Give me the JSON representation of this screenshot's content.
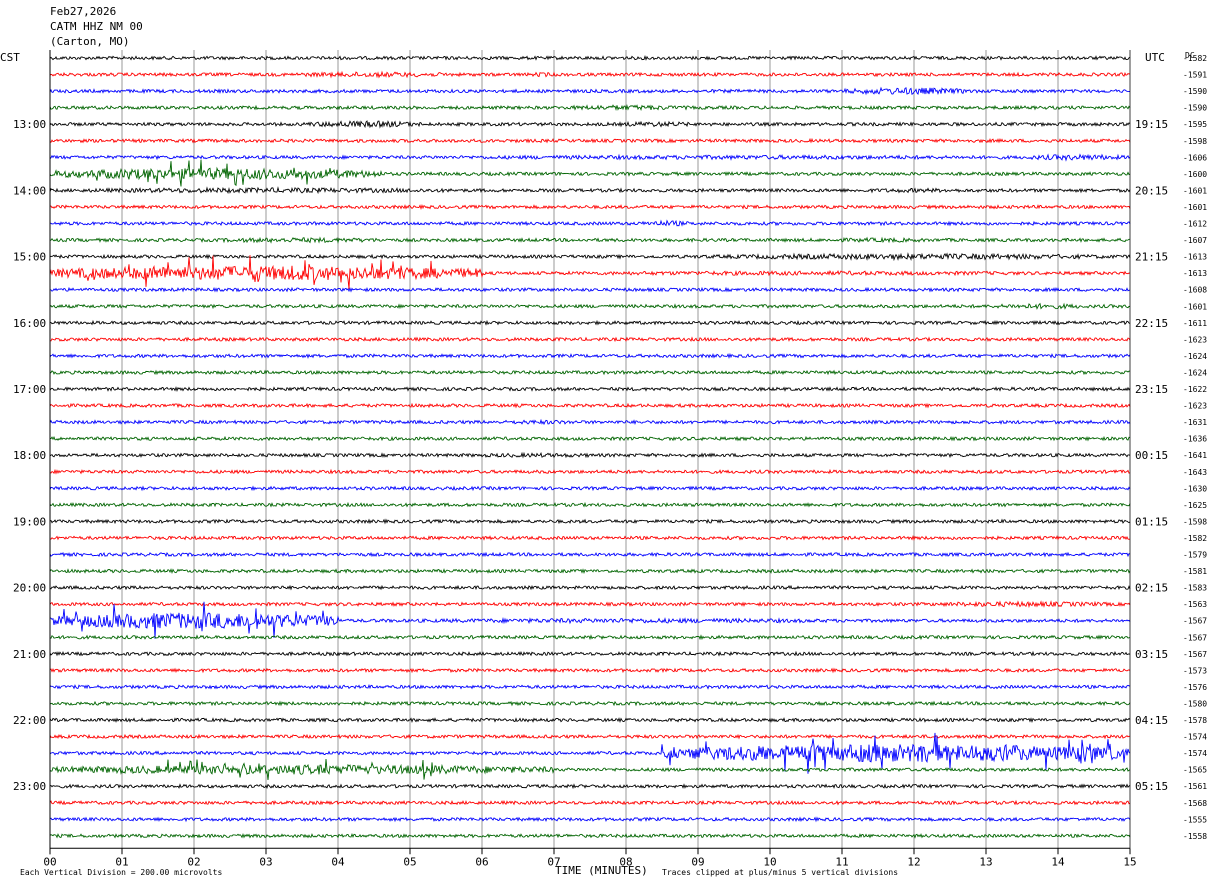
{
  "header": {
    "date": "Feb27,2026",
    "station": "CATM HHZ NM 00",
    "location": "(Carton, MO)"
  },
  "chart_data": {
    "type": "line",
    "title": "Feb27,2026  CATM HHZ NM 00  (Carton, MO)",
    "left_axis_label": "CST",
    "right_axis_label": "UTC",
    "dc_label": "DC",
    "xlabel": "TIME (MINUTES)",
    "xlim": [
      0,
      15
    ],
    "x_ticks": [
      "00",
      "01",
      "02",
      "03",
      "04",
      "05",
      "06",
      "07",
      "08",
      "09",
      "10",
      "11",
      "12",
      "13",
      "14",
      "15"
    ],
    "left_hour_labels": [
      "13:00",
      "14:00",
      "15:00",
      "16:00",
      "17:00",
      "18:00",
      "19:00",
      "20:00",
      "21:00",
      "22:00",
      "23:00"
    ],
    "right_hour_labels": [
      "19:15",
      "20:15",
      "21:15",
      "22:15",
      "23:15",
      "00:15",
      "01:15",
      "02:15",
      "03:15",
      "04:15",
      "05:15"
    ],
    "trace_colors": [
      "#000000",
      "#ff0000",
      "#0000ff",
      "#006400"
    ],
    "dc_offsets": [
      "-1582",
      "-1591",
      "-1590",
      "-1590",
      "-1595",
      "-1598",
      "-1606",
      "-1600",
      "-1601",
      "-1601",
      "-1612",
      "-1607",
      "-1613",
      "-1613",
      "-1608",
      "-1601",
      "-1611",
      "-1623",
      "-1624",
      "-1624",
      "-1622",
      "-1623",
      "-1631",
      "-1636",
      "-1641",
      "-1643",
      "-1630",
      "-1625",
      "-1598",
      "-1582",
      "-1579",
      "-1581",
      "-1583",
      "-1563",
      "-1567",
      "-1567",
      "-1567",
      "-1573",
      "-1576",
      "-1580",
      "-1578",
      "-1574",
      "-1574",
      "-1565",
      "-1561",
      "-1568",
      "-1555",
      "-1558"
    ],
    "events": [
      {
        "trace": 1,
        "x0": 3.2,
        "x1": 5.8,
        "amp": 1.6
      },
      {
        "trace": 1,
        "x0": 6.6,
        "x1": 7.1,
        "amp": 1.4
      },
      {
        "trace": 2,
        "x0": 11.0,
        "x1": 12.8,
        "amp": 2.2
      },
      {
        "trace": 3,
        "x0": 7.0,
        "x1": 9.0,
        "amp": 1.6
      },
      {
        "trace": 4,
        "x0": 3.5,
        "x1": 5.2,
        "amp": 2.0
      },
      {
        "trace": 4,
        "x0": 7.8,
        "x1": 9.0,
        "amp": 1.6
      },
      {
        "trace": 6,
        "x0": 4.0,
        "x1": 15.0,
        "amp": 1.3
      },
      {
        "trace": 6,
        "x0": 13.5,
        "x1": 15.0,
        "amp": 1.8
      },
      {
        "trace": 7,
        "x0": 0.0,
        "x1": 4.6,
        "amp": 3.5
      },
      {
        "trace": 8,
        "x0": 0.0,
        "x1": 6.0,
        "amp": 1.6
      },
      {
        "trace": 8,
        "x0": 11.0,
        "x1": 13.0,
        "amp": 1.3
      },
      {
        "trace": 10,
        "x0": 8.2,
        "x1": 8.9,
        "amp": 1.8
      },
      {
        "trace": 11,
        "x0": 2.0,
        "x1": 5.0,
        "amp": 1.5
      },
      {
        "trace": 11,
        "x0": 10.5,
        "x1": 12.5,
        "amp": 1.3
      },
      {
        "trace": 12,
        "x0": 9.0,
        "x1": 15.0,
        "amp": 1.8
      },
      {
        "trace": 13,
        "x0": 0.0,
        "x1": 6.0,
        "amp": 4.5
      },
      {
        "trace": 13,
        "x0": 6.0,
        "x1": 15.0,
        "amp": 1.3
      },
      {
        "trace": 15,
        "x0": 13.0,
        "x1": 14.5,
        "amp": 1.6
      },
      {
        "trace": 22,
        "x0": 6.0,
        "x1": 7.6,
        "amp": 1.3
      },
      {
        "trace": 24,
        "x0": 5.5,
        "x1": 8.0,
        "amp": 1.3
      },
      {
        "trace": 33,
        "x0": 12.0,
        "x1": 15.0,
        "amp": 1.6
      },
      {
        "trace": 34,
        "x0": 0.0,
        "x1": 4.0,
        "amp": 5.0
      },
      {
        "trace": 34,
        "x0": 4.0,
        "x1": 12.0,
        "amp": 1.4
      },
      {
        "trace": 42,
        "x0": 8.5,
        "x1": 15.0,
        "amp": 5.5
      },
      {
        "trace": 43,
        "x0": 0.0,
        "x1": 7.0,
        "amp": 3.0
      }
    ],
    "grid": true,
    "traces_per_hour": 4,
    "footer_left": "Each Vertical Division =  200.00 microvolts",
    "footer_right": "Traces clipped at plus/minus 5 vertical divisions"
  }
}
